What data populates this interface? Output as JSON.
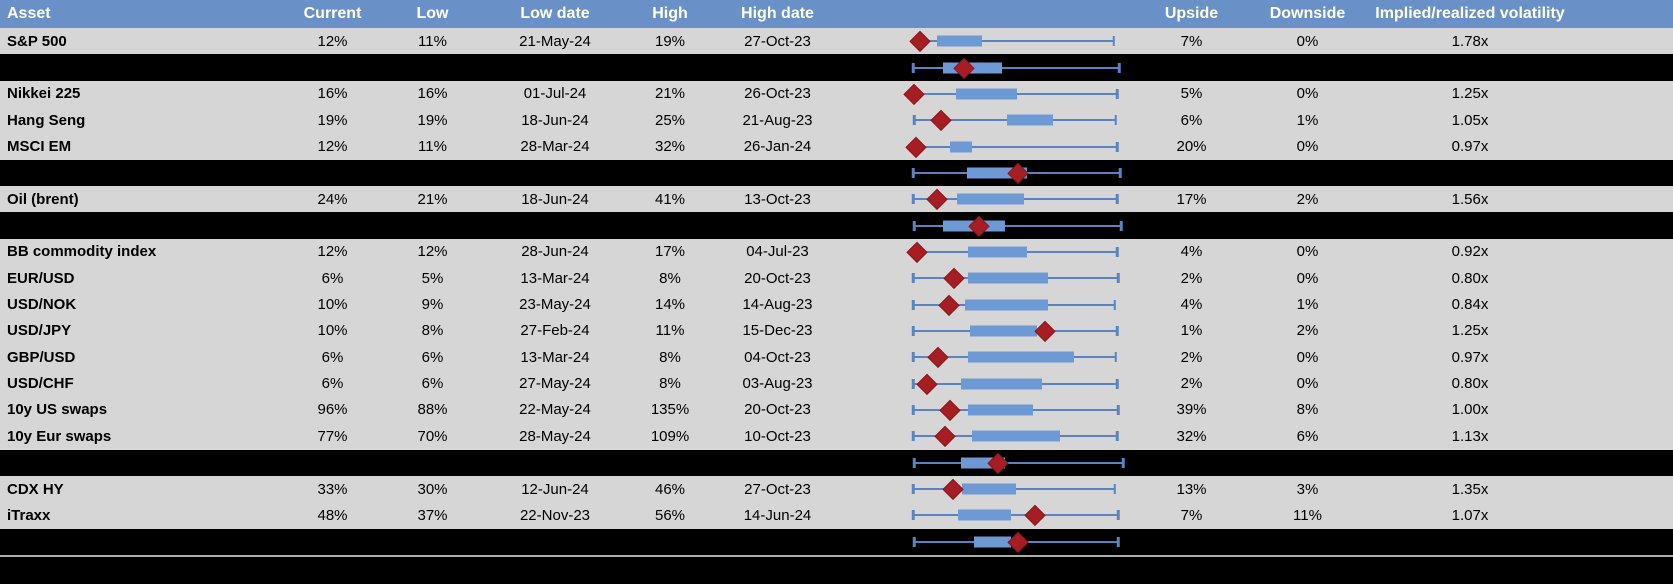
{
  "colors": {
    "header_bg": "#6991C8",
    "header_text": "#FFFFFF",
    "row_bg": "#D6D6D6",
    "separator_bg": "#000000",
    "box_fill": "#6D99D4",
    "whisker": "#5884C4",
    "diamond_marker": "#A61D22",
    "bottom_divider": "#ABABAB"
  },
  "table": {
    "columns": [
      "Asset",
      "Current",
      "Low",
      "Low date",
      "High",
      "High date",
      "",
      "Upside",
      "Downside",
      "Implied/realized volatility"
    ],
    "rows": [
      {
        "type": "data",
        "asset": "S&P 500",
        "current": "12%",
        "low": "11%",
        "low_date": "21-May-24",
        "high": "19%",
        "high_date": "27-Oct-23",
        "upside": "7%",
        "downside": "0%",
        "implied_realized": "1.78x",
        "plot": {
          "w0": 0.02,
          "w1": 0.985,
          "b0": 0.12,
          "b1": 0.34,
          "d": 0.034
        }
      },
      {
        "type": "separator",
        "plot": {
          "w0": 0.0,
          "w1": 1.01,
          "b0": 0.147,
          "b1": 0.436,
          "d": 0.25
        }
      },
      {
        "type": "data",
        "asset": "Nikkei 225",
        "current": "16%",
        "low": "16%",
        "low_date": "01-Jul-24",
        "high": "21%",
        "high_date": "26-Oct-23",
        "upside": "5%",
        "downside": "0%",
        "implied_realized": "1.25x",
        "plot": {
          "w0": 0.0,
          "w1": 1.0,
          "b0": 0.21,
          "b1": 0.51,
          "d": 0.005
        }
      },
      {
        "type": "data",
        "asset": "Hang Seng",
        "current": "19%",
        "low": "19%",
        "low_date": "18-Jun-24",
        "high": "25%",
        "high_date": "21-Aug-23",
        "upside": "6%",
        "downside": "1%",
        "implied_realized": "1.05x",
        "plot": {
          "w0": 0.005,
          "w1": 0.995,
          "b0": 0.46,
          "b1": 0.685,
          "d": 0.137
        }
      },
      {
        "type": "data",
        "asset": "MSCI EM",
        "current": "12%",
        "low": "11%",
        "low_date": "28-Mar-24",
        "high": "32%",
        "high_date": "26-Jan-24",
        "upside": "20%",
        "downside": "0%",
        "implied_realized": "0.97x",
        "plot": {
          "w0": 0.01,
          "w1": 1.0,
          "b0": 0.18,
          "b1": 0.29,
          "d": 0.015
        }
      },
      {
        "type": "separator",
        "plot": {
          "w0": 0.0,
          "w1": 1.015,
          "b0": 0.265,
          "b1": 0.56,
          "d": 0.515
        }
      },
      {
        "type": "data",
        "asset": "Oil (brent)",
        "current": "24%",
        "low": "21%",
        "low_date": "18-Jun-24",
        "high": "41%",
        "high_date": "13-Oct-23",
        "upside": "17%",
        "downside": "2%",
        "implied_realized": "1.56x",
        "plot": {
          "w0": 0.0,
          "w1": 1.0,
          "b0": 0.216,
          "b1": 0.544,
          "d": 0.118
        }
      },
      {
        "type": "separator",
        "plot": {
          "w0": 0.005,
          "w1": 1.02,
          "b0": 0.147,
          "b1": 0.45,
          "d": 0.324
        }
      },
      {
        "type": "data",
        "asset": "BB commodity index",
        "current": "12%",
        "low": "12%",
        "low_date": "28-Jun-24",
        "high": "17%",
        "high_date": "04-Jul-23",
        "upside": "4%",
        "downside": "0%",
        "implied_realized": "0.92x",
        "plot": {
          "w0": 0.02,
          "w1": 1.0,
          "b0": 0.27,
          "b1": 0.56,
          "d": 0.02
        }
      },
      {
        "type": "data",
        "asset": "EUR/USD",
        "current": "6%",
        "low": "5%",
        "low_date": "13-Mar-24",
        "high": "8%",
        "high_date": "20-Oct-23",
        "upside": "2%",
        "downside": "0%",
        "implied_realized": "0.80x",
        "plot": {
          "w0": 0.0,
          "w1": 1.005,
          "b0": 0.27,
          "b1": 0.66,
          "d": 0.2
        }
      },
      {
        "type": "data",
        "asset": "USD/NOK",
        "current": "10%",
        "low": "9%",
        "low_date": "23-May-24",
        "high": "14%",
        "high_date": "14-Aug-23",
        "upside": "4%",
        "downside": "1%",
        "implied_realized": "0.84x",
        "plot": {
          "w0": 0.0,
          "w1": 0.99,
          "b0": 0.255,
          "b1": 0.66,
          "d": 0.177
        }
      },
      {
        "type": "data",
        "asset": "USD/JPY",
        "current": "10%",
        "low": "8%",
        "low_date": "27-Feb-24",
        "high": "11%",
        "high_date": "15-Dec-23",
        "upside": "1%",
        "downside": "2%",
        "implied_realized": "1.25x",
        "plot": {
          "w0": 0.0,
          "w1": 1.0,
          "b0": 0.28,
          "b1": 0.61,
          "d": 0.647
        }
      },
      {
        "type": "data",
        "asset": "GBP/USD",
        "current": "6%",
        "low": "6%",
        "low_date": "13-Mar-24",
        "high": "8%",
        "high_date": "04-Oct-23",
        "upside": "2%",
        "downside": "0%",
        "implied_realized": "0.97x",
        "plot": {
          "w0": 0.0,
          "w1": 0.995,
          "b0": 0.27,
          "b1": 0.79,
          "d": 0.123
        }
      },
      {
        "type": "data",
        "asset": "USD/CHF",
        "current": "6%",
        "low": "6%",
        "low_date": "27-May-24",
        "high": "8%",
        "high_date": "03-Aug-23",
        "upside": "2%",
        "downside": "0%",
        "implied_realized": "0.80x",
        "plot": {
          "w0": 0.0,
          "w1": 1.0,
          "b0": 0.235,
          "b1": 0.63,
          "d": 0.07
        }
      },
      {
        "type": "data",
        "asset": "10y US swaps",
        "current": "96%",
        "low": "88%",
        "low_date": "22-May-24",
        "high": "135%",
        "high_date": "20-Oct-23",
        "upside": "39%",
        "downside": "8%",
        "implied_realized": "1.00x",
        "plot": {
          "w0": 0.0,
          "w1": 1.005,
          "b0": 0.27,
          "b1": 0.59,
          "d": 0.18
        }
      },
      {
        "type": "data",
        "asset": "10y Eur swaps",
        "current": "77%",
        "low": "70%",
        "low_date": "28-May-24",
        "high": "109%",
        "high_date": "10-Oct-23",
        "upside": "32%",
        "downside": "6%",
        "implied_realized": "1.13x",
        "plot": {
          "w0": 0.0,
          "w1": 1.0,
          "b0": 0.29,
          "b1": 0.72,
          "d": 0.157
        }
      },
      {
        "type": "separator",
        "plot": {
          "w0": 0.005,
          "w1": 1.03,
          "b0": 0.235,
          "b1": 0.45,
          "d": 0.417
        }
      },
      {
        "type": "data",
        "asset": "CDX HY",
        "current": "33%",
        "low": "30%",
        "low_date": "12-Jun-24",
        "high": "46%",
        "high_date": "27-Oct-23",
        "upside": "13%",
        "downside": "3%",
        "implied_realized": "1.35x",
        "plot": {
          "w0": 0.0,
          "w1": 0.99,
          "b0": 0.24,
          "b1": 0.505,
          "d": 0.195
        }
      },
      {
        "type": "data",
        "asset": "iTraxx",
        "current": "48%",
        "low": "37%",
        "low_date": "22-Nov-23",
        "high": "56%",
        "high_date": "14-Jun-24",
        "upside": "7%",
        "downside": "11%",
        "implied_realized": "1.07x",
        "plot": {
          "w0": 0.0,
          "w1": 1.005,
          "b0": 0.22,
          "b1": 0.48,
          "d": 0.6
        }
      },
      {
        "type": "separator",
        "plot": {
          "w0": 0.005,
          "w1": 1.005,
          "b0": 0.3,
          "b1": 0.48,
          "d": 0.515
        }
      }
    ]
  },
  "chart_data": {
    "type": "boxplot",
    "orientation": "horizontal",
    "note": "Each row is a horizontal box-and-whisker sparkline normalized to that asset's own low-high implied volatility range; red diamond marks current level; solid blue box marks the middle range; black separator rows show unlabeled aggregate boxplots.",
    "marker_legend": {
      "diamond": "current implied volatility",
      "whiskers": "low to high range",
      "box": "middle range of period"
    },
    "series": [
      {
        "asset": "S&P 500",
        "current_pct": 12,
        "low_pct": 11,
        "high_pct": 19,
        "low_date": "21-May-24",
        "high_date": "27-Oct-23",
        "upside_pct": 7,
        "downside_pct": 0,
        "implied_realized_ratio": 1.78,
        "normalized": {
          "whisker": [
            0.02,
            0.985
          ],
          "box": [
            0.12,
            0.34
          ],
          "marker": 0.034
        }
      },
      {
        "asset": "aggregate-1",
        "normalized": {
          "whisker": [
            0.0,
            1.01
          ],
          "box": [
            0.147,
            0.436
          ],
          "marker": 0.25
        }
      },
      {
        "asset": "Nikkei 225",
        "current_pct": 16,
        "low_pct": 16,
        "high_pct": 21,
        "low_date": "01-Jul-24",
        "high_date": "26-Oct-23",
        "upside_pct": 5,
        "downside_pct": 0,
        "implied_realized_ratio": 1.25,
        "normalized": {
          "whisker": [
            0.0,
            1.0
          ],
          "box": [
            0.21,
            0.51
          ],
          "marker": 0.005
        }
      },
      {
        "asset": "Hang Seng",
        "current_pct": 19,
        "low_pct": 19,
        "high_pct": 25,
        "low_date": "18-Jun-24",
        "high_date": "21-Aug-23",
        "upside_pct": 6,
        "downside_pct": 1,
        "implied_realized_ratio": 1.05,
        "normalized": {
          "whisker": [
            0.005,
            0.995
          ],
          "box": [
            0.46,
            0.685
          ],
          "marker": 0.137
        }
      },
      {
        "asset": "MSCI EM",
        "current_pct": 12,
        "low_pct": 11,
        "high_pct": 32,
        "low_date": "28-Mar-24",
        "high_date": "26-Jan-24",
        "upside_pct": 20,
        "downside_pct": 0,
        "implied_realized_ratio": 0.97,
        "normalized": {
          "whisker": [
            0.01,
            1.0
          ],
          "box": [
            0.18,
            0.29
          ],
          "marker": 0.015
        }
      },
      {
        "asset": "aggregate-2",
        "normalized": {
          "whisker": [
            0.0,
            1.015
          ],
          "box": [
            0.265,
            0.56
          ],
          "marker": 0.515
        }
      },
      {
        "asset": "Oil (brent)",
        "current_pct": 24,
        "low_pct": 21,
        "high_pct": 41,
        "low_date": "18-Jun-24",
        "high_date": "13-Oct-23",
        "upside_pct": 17,
        "downside_pct": 2,
        "implied_realized_ratio": 1.56,
        "normalized": {
          "whisker": [
            0.0,
            1.0
          ],
          "box": [
            0.216,
            0.544
          ],
          "marker": 0.118
        }
      },
      {
        "asset": "aggregate-3",
        "normalized": {
          "whisker": [
            0.005,
            1.02
          ],
          "box": [
            0.147,
            0.45
          ],
          "marker": 0.324
        }
      },
      {
        "asset": "BB commodity index",
        "current_pct": 12,
        "low_pct": 12,
        "high_pct": 17,
        "low_date": "28-Jun-24",
        "high_date": "04-Jul-23",
        "upside_pct": 4,
        "downside_pct": 0,
        "implied_realized_ratio": 0.92,
        "normalized": {
          "whisker": [
            0.02,
            1.0
          ],
          "box": [
            0.27,
            0.56
          ],
          "marker": 0.02
        }
      },
      {
        "asset": "EUR/USD",
        "current_pct": 6,
        "low_pct": 5,
        "high_pct": 8,
        "low_date": "13-Mar-24",
        "high_date": "20-Oct-23",
        "upside_pct": 2,
        "downside_pct": 0,
        "implied_realized_ratio": 0.8,
        "normalized": {
          "whisker": [
            0.0,
            1.005
          ],
          "box": [
            0.27,
            0.66
          ],
          "marker": 0.2
        }
      },
      {
        "asset": "USD/NOK",
        "current_pct": 10,
        "low_pct": 9,
        "high_pct": 14,
        "low_date": "23-May-24",
        "high_date": "14-Aug-23",
        "upside_pct": 4,
        "downside_pct": 1,
        "implied_realized_ratio": 0.84,
        "normalized": {
          "whisker": [
            0.0,
            0.99
          ],
          "box": [
            0.255,
            0.66
          ],
          "marker": 0.177
        }
      },
      {
        "asset": "USD/JPY",
        "current_pct": 10,
        "low_pct": 8,
        "high_pct": 11,
        "low_date": "27-Feb-24",
        "high_date": "15-Dec-23",
        "upside_pct": 1,
        "downside_pct": 2,
        "implied_realized_ratio": 1.25,
        "normalized": {
          "whisker": [
            0.0,
            1.0
          ],
          "box": [
            0.28,
            0.61
          ],
          "marker": 0.647
        }
      },
      {
        "asset": "GBP/USD",
        "current_pct": 6,
        "low_pct": 6,
        "high_pct": 8,
        "low_date": "13-Mar-24",
        "high_date": "04-Oct-23",
        "upside_pct": 2,
        "downside_pct": 0,
        "implied_realized_ratio": 0.97,
        "normalized": {
          "whisker": [
            0.0,
            0.995
          ],
          "box": [
            0.27,
            0.79
          ],
          "marker": 0.123
        }
      },
      {
        "asset": "USD/CHF",
        "current_pct": 6,
        "low_pct": 6,
        "high_pct": 8,
        "low_date": "27-May-24",
        "high_date": "03-Aug-23",
        "upside_pct": 2,
        "downside_pct": 0,
        "implied_realized_ratio": 0.8,
        "normalized": {
          "whisker": [
            0.0,
            1.0
          ],
          "box": [
            0.235,
            0.63
          ],
          "marker": 0.07
        }
      },
      {
        "asset": "10y US swaps",
        "current_pct": 96,
        "low_pct": 88,
        "high_pct": 135,
        "low_date": "22-May-24",
        "high_date": "20-Oct-23",
        "upside_pct": 39,
        "downside_pct": 8,
        "implied_realized_ratio": 1.0,
        "normalized": {
          "whisker": [
            0.0,
            1.005
          ],
          "box": [
            0.27,
            0.59
          ],
          "marker": 0.18
        }
      },
      {
        "asset": "10y Eur swaps",
        "current_pct": 77,
        "low_pct": 70,
        "high_pct": 109,
        "low_date": "28-May-24",
        "high_date": "10-Oct-23",
        "upside_pct": 32,
        "downside_pct": 6,
        "implied_realized_ratio": 1.13,
        "normalized": {
          "whisker": [
            0.0,
            1.0
          ],
          "box": [
            0.29,
            0.72
          ],
          "marker": 0.157
        }
      },
      {
        "asset": "aggregate-4",
        "normalized": {
          "whisker": [
            0.005,
            1.03
          ],
          "box": [
            0.235,
            0.45
          ],
          "marker": 0.417
        }
      },
      {
        "asset": "CDX HY",
        "current_pct": 33,
        "low_pct": 30,
        "high_pct": 46,
        "low_date": "12-Jun-24",
        "high_date": "27-Oct-23",
        "upside_pct": 13,
        "downside_pct": 3,
        "implied_realized_ratio": 1.35,
        "normalized": {
          "whisker": [
            0.0,
            0.99
          ],
          "box": [
            0.24,
            0.505
          ],
          "marker": 0.195
        }
      },
      {
        "asset": "iTraxx",
        "current_pct": 48,
        "low_pct": 37,
        "high_pct": 56,
        "low_date": "22-Nov-23",
        "high_date": "14-Jun-24",
        "upside_pct": 7,
        "downside_pct": 11,
        "implied_realized_ratio": 1.07,
        "normalized": {
          "whisker": [
            0.0,
            1.005
          ],
          "box": [
            0.22,
            0.48
          ],
          "marker": 0.6
        }
      },
      {
        "asset": "aggregate-5",
        "normalized": {
          "whisker": [
            0.005,
            1.005
          ],
          "box": [
            0.3,
            0.48
          ],
          "marker": 0.515
        }
      }
    ]
  }
}
